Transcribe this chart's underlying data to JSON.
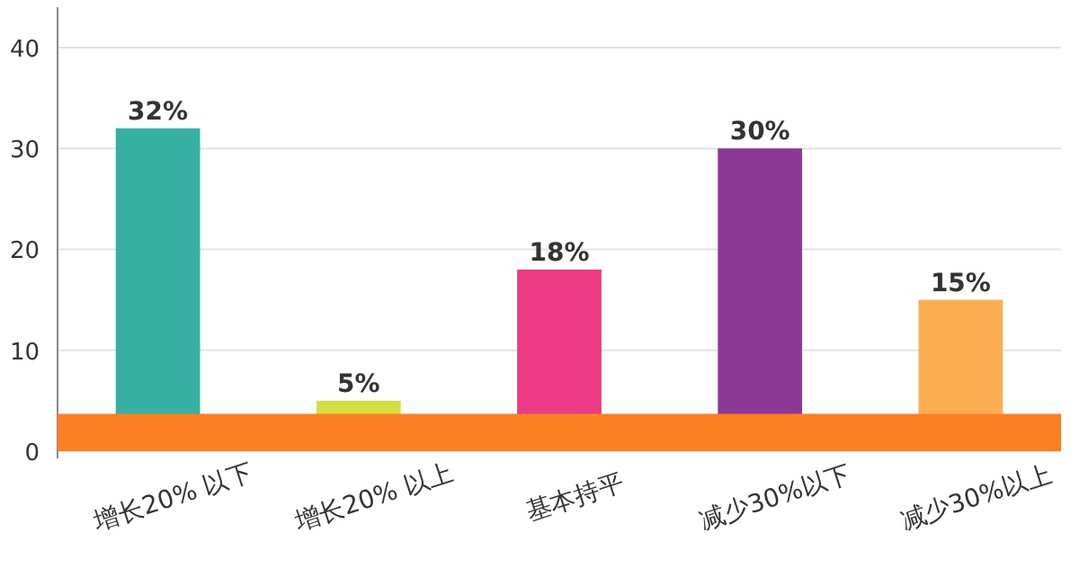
{
  "chart_data": {
    "type": "bar",
    "categories": [
      "增长20% 以下",
      "增长20% 以上",
      "基本持平",
      "减少30%以下",
      "减少30%以上"
    ],
    "values": [
      32,
      5,
      18,
      30,
      15
    ],
    "value_labels": [
      "32%",
      "5%",
      "18%",
      "30%",
      "15%"
    ],
    "colors": [
      "#35b0a3",
      "#d4df3f",
      "#ec3b84",
      "#8b3a96",
      "#fbae52"
    ],
    "ylim": [
      0,
      44
    ],
    "yticks": [
      0,
      10,
      20,
      30,
      40
    ],
    "grid": "y",
    "bands": [
      {
        "axis": "y",
        "from": 0,
        "to": 3.7,
        "color": "#fd7f24"
      }
    ]
  }
}
